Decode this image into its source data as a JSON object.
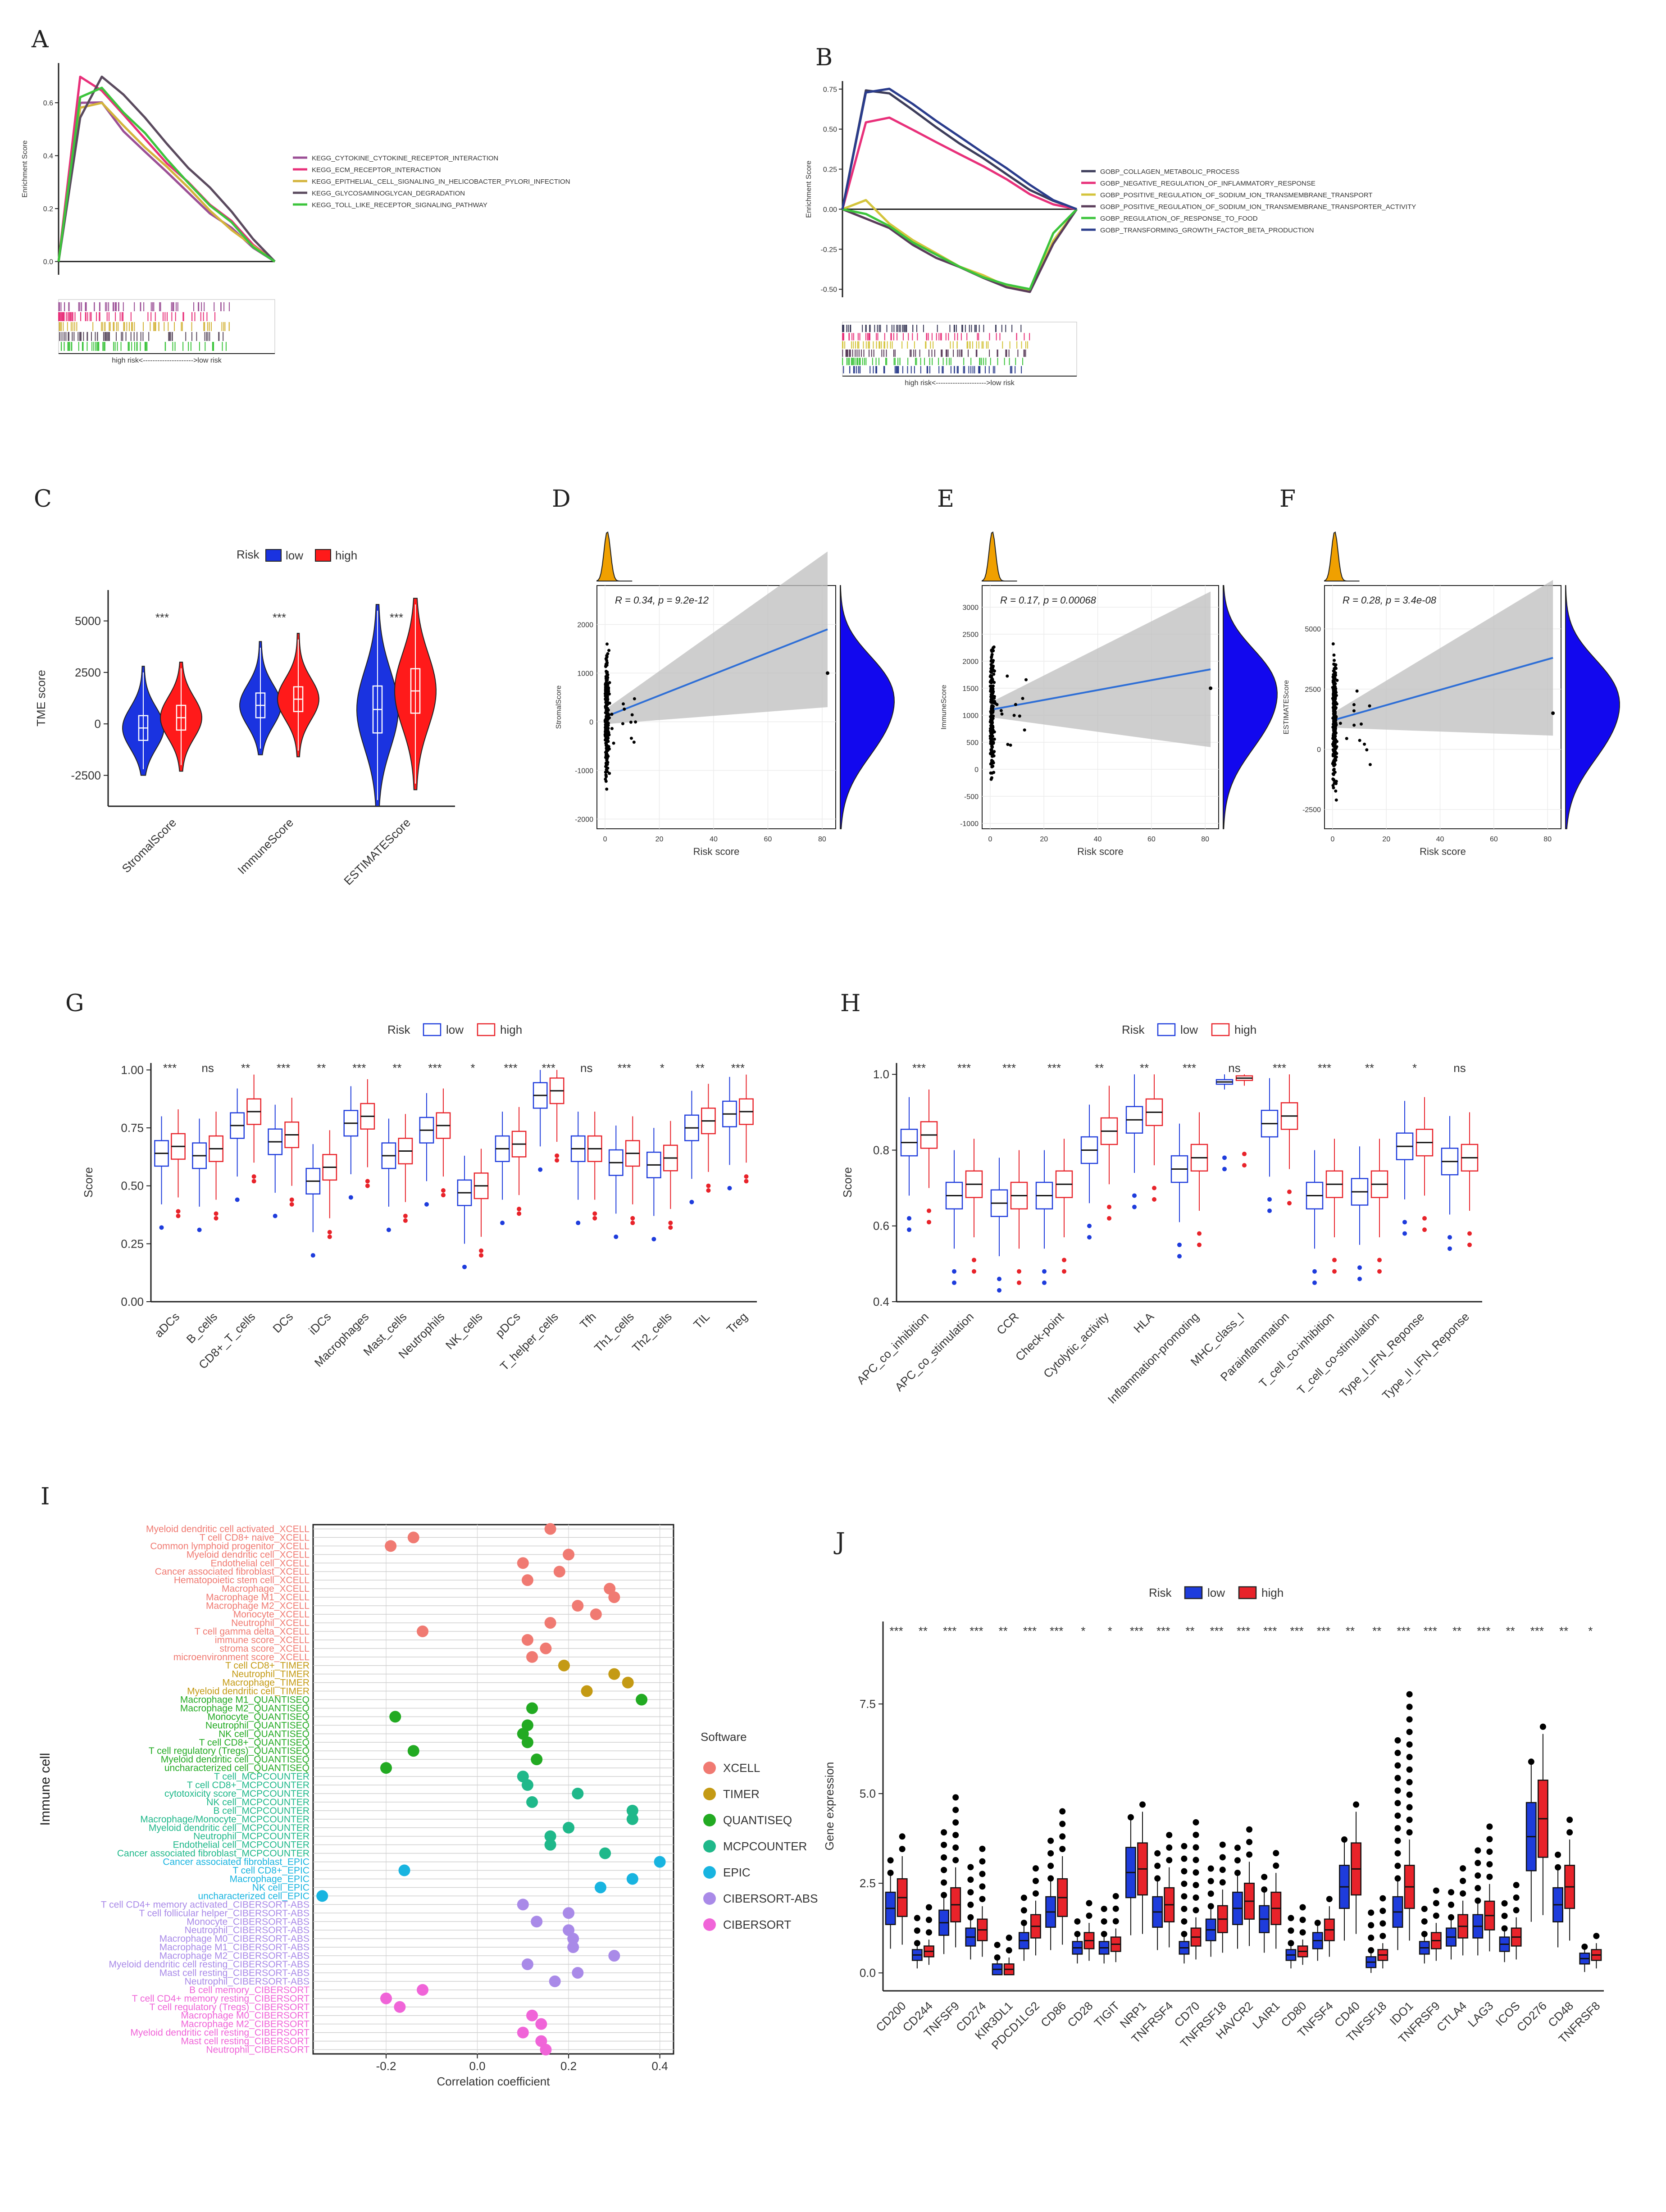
{
  "colors": {
    "low": "#1e3cdc",
    "high": "#e8232a",
    "blueFill": "#1a33e0",
    "redFill": "#ff1a1a"
  },
  "panelA": {
    "letter": "A",
    "ylabel": "Enrichment Score",
    "yticks": [
      "0.6",
      "0.4",
      "0.2",
      "0.0"
    ],
    "footer": "high risk<--------------------->low risk",
    "legend": [
      {
        "label": "KEGG_CYTOKINE_CYTOKINE_RECEPTOR_INTERACTION",
        "color": "#9b4f96"
      },
      {
        "label": "KEGG_ECM_RECEPTOR_INTERACTION",
        "color": "#e8307a"
      },
      {
        "label": "KEGG_EPITHELIAL_CELL_SIGNALING_IN_HELICOBACTER_PYLORI_INFECTION",
        "color": "#d4b43c"
      },
      {
        "label": "KEGG_GLYCOSAMINOGLYCAN_DEGRADATION",
        "color": "#5a4a5e"
      },
      {
        "label": "KEGG_TOLL_LIKE_RECEPTOR_SIGNALING_PATHWAY",
        "color": "#3cc43c"
      }
    ]
  },
  "panelB": {
    "letter": "B",
    "ylabel": "Enrichment Score",
    "yticks": [
      "0.75",
      "0.50",
      "0.25",
      "0.00",
      "-0.25",
      "-0.50"
    ],
    "footer": "high risk<--------------------->low risk",
    "legend": [
      {
        "label": "GOBP_COLLAGEN_METABOLIC_PROCESS",
        "color": "#3c3c5a"
      },
      {
        "label": "GOBP_NEGATIVE_REGULATION_OF_INFLAMMATORY_RESPONSE",
        "color": "#e8307a"
      },
      {
        "label": "GOBP_POSITIVE_REGULATION_OF_SODIUM_ION_TRANSMEMBRANE_TRANSPORT",
        "color": "#d4c43c"
      },
      {
        "label": "GOBP_POSITIVE_REGULATION_OF_SODIUM_ION_TRANSMEMBRANE_TRANSPORTER_ACTIVITY",
        "color": "#5a3c5a"
      },
      {
        "label": "GOBP_REGULATION_OF_RESPONSE_TO_FOOD",
        "color": "#3cc43c"
      },
      {
        "label": "GOBP_TRANSFORMING_GROWTH_FACTOR_BETA_PRODUCTION",
        "color": "#2a3c8c"
      }
    ]
  },
  "panelC": {
    "letter": "C",
    "legend_title": "Risk",
    "legend_low": "low",
    "legend_high": "high",
    "ylabel": "TME score",
    "yticks": [
      "5000",
      "2500",
      "0",
      "-2500"
    ],
    "categories": [
      "StromalScore",
      "ImmuneScore",
      "ESTIMATEScore"
    ],
    "sig": [
      "***",
      "***",
      "***"
    ]
  },
  "scatter": [
    {
      "letter": "D",
      "ylabel": "StromalScore",
      "xlabel": "Risk score",
      "stat": "R = 0.34, p = 9.2e-12",
      "yticks": [
        "2000",
        "1000",
        "0",
        "-1000",
        "-2000"
      ],
      "xticks": [
        "0",
        "20",
        "40",
        "60",
        "80"
      ]
    },
    {
      "letter": "E",
      "ylabel": "ImmuneScore",
      "xlabel": "Risk score",
      "stat": "R = 0.17, p = 0.00068",
      "yticks": [
        "3000",
        "2500",
        "2000",
        "1500",
        "1000",
        "500",
        "0",
        "-500",
        "-1000"
      ],
      "xticks": [
        "0",
        "20",
        "40",
        "60",
        "80"
      ]
    },
    {
      "letter": "F",
      "ylabel": "ESTIMATEScore",
      "xlabel": "Risk score",
      "stat": "R = 0.28, p = 3.4e-08",
      "yticks": [
        "5000",
        "2500",
        "0",
        "-2500"
      ],
      "xticks": [
        "0",
        "20",
        "40",
        "60",
        "80"
      ]
    }
  ],
  "panelG": {
    "letter": "G",
    "legend_title": "Risk",
    "legend_low": "low",
    "legend_high": "high",
    "ylabel": "Score",
    "yticks": [
      "1.00",
      "0.75",
      "0.50",
      "0.25",
      "0.00"
    ],
    "categories": [
      "aDCs",
      "B_cells",
      "CD8+_T_cells",
      "DCs",
      "iDCs",
      "Macrophages",
      "Mast_cells",
      "Neutrophils",
      "NK_cells",
      "pDCs",
      "T_helper_cells",
      "Tfh",
      "Th1_cells",
      "Th2_cells",
      "TIL",
      "Treg"
    ],
    "sig": [
      "***",
      "ns",
      "**",
      "***",
      "**",
      "***",
      "**",
      "***",
      "*",
      "***",
      "***",
      "ns",
      "***",
      "*",
      "**",
      "***"
    ]
  },
  "panelH": {
    "letter": "H",
    "legend_title": "Risk",
    "legend_low": "low",
    "legend_high": "high",
    "ylabel": "Score",
    "yticks": [
      "1.0",
      "0.8",
      "0.6",
      "0.4"
    ],
    "categories": [
      "APC_co_inhibition",
      "APC_co_stimulation",
      "CCR",
      "Check-point",
      "Cytolytic_activity",
      "HLA",
      "Inflammation-promoting",
      "MHC_class_I",
      "Parainflammation",
      "T_cell_co-inhibition",
      "T_cell_co-stimulation",
      "Type_I_IFN_Reponse",
      "Type_II_IFN_Reponse"
    ],
    "sig": [
      "***",
      "***",
      "***",
      "***",
      "**",
      "**",
      "***",
      "ns",
      "***",
      "***",
      "**",
      "*",
      "ns"
    ]
  },
  "panelI": {
    "letter": "I",
    "ylabel": "Immune cell",
    "xlabel": "Correlation coefficient",
    "xticks": [
      "-0.2",
      "0.0",
      "0.2",
      "0.4"
    ],
    "legend_title": "Software",
    "software": [
      {
        "name": "XCELL",
        "color": "#f07a72"
      },
      {
        "name": "TIMER",
        "color": "#c49a14"
      },
      {
        "name": "QUANTISEQ",
        "color": "#22aa22"
      },
      {
        "name": "MCPCOUNTER",
        "color": "#1fb88a"
      },
      {
        "name": "EPIC",
        "color": "#18b4e0"
      },
      {
        "name": "CIBERSORT-ABS",
        "color": "#a98ae8"
      },
      {
        "name": "CIBERSORT",
        "color": "#f064d8"
      }
    ],
    "rows": [
      {
        "label": "Myeloid dendritic cell activated_XCELL",
        "sw": 0,
        "r": 0.16
      },
      {
        "label": "T cell CD8+ naive_XCELL",
        "sw": 0,
        "r": -0.14
      },
      {
        "label": "Common lymphoid progenitor_XCELL",
        "sw": 0,
        "r": -0.19
      },
      {
        "label": "Myeloid dendritic cell_XCELL",
        "sw": 0,
        "r": 0.2
      },
      {
        "label": "Endothelial cell_XCELL",
        "sw": 0,
        "r": 0.1
      },
      {
        "label": "Cancer associated fibroblast_XCELL",
        "sw": 0,
        "r": 0.18
      },
      {
        "label": "Hematopoietic stem cell_XCELL",
        "sw": 0,
        "r": 0.11
      },
      {
        "label": "Macrophage_XCELL",
        "sw": 0,
        "r": 0.29
      },
      {
        "label": "Macrophage M1_XCELL",
        "sw": 0,
        "r": 0.3
      },
      {
        "label": "Macrophage M2_XCELL",
        "sw": 0,
        "r": 0.22
      },
      {
        "label": "Monocyte_XCELL",
        "sw": 0,
        "r": 0.26
      },
      {
        "label": "Neutrophil_XCELL",
        "sw": 0,
        "r": 0.16
      },
      {
        "label": "T cell gamma delta_XCELL",
        "sw": 0,
        "r": -0.12
      },
      {
        "label": "immune score_XCELL",
        "sw": 0,
        "r": 0.11
      },
      {
        "label": "stroma score_XCELL",
        "sw": 0,
        "r": 0.15
      },
      {
        "label": "microenvironment score_XCELL",
        "sw": 0,
        "r": 0.12
      },
      {
        "label": "T cell CD8+_TIMER",
        "sw": 1,
        "r": 0.19
      },
      {
        "label": "Neutrophil_TIMER",
        "sw": 1,
        "r": 0.3
      },
      {
        "label": "Macrophage_TIMER",
        "sw": 1,
        "r": 0.33
      },
      {
        "label": "Myeloid dendritic cell_TIMER",
        "sw": 1,
        "r": 0.24
      },
      {
        "label": "Macrophage M1_QUANTISEQ",
        "sw": 2,
        "r": 0.36
      },
      {
        "label": "Macrophage M2_QUANTISEQ",
        "sw": 2,
        "r": 0.12
      },
      {
        "label": "Monocyte_QUANTISEQ",
        "sw": 2,
        "r": -0.18
      },
      {
        "label": "Neutrophil_QUANTISEQ",
        "sw": 2,
        "r": 0.11
      },
      {
        "label": "NK cell_QUANTISEQ",
        "sw": 2,
        "r": 0.1
      },
      {
        "label": "T cell CD8+_QUANTISEQ",
        "sw": 2,
        "r": 0.11
      },
      {
        "label": "T cell regulatory (Tregs)_QUANTISEQ",
        "sw": 2,
        "r": -0.14
      },
      {
        "label": "Myeloid dendritic cell_QUANTISEQ",
        "sw": 2,
        "r": 0.13
      },
      {
        "label": "uncharacterized cell_QUANTISEQ",
        "sw": 2,
        "r": -0.2
      },
      {
        "label": "T cell_MCPCOUNTER",
        "sw": 3,
        "r": 0.1
      },
      {
        "label": "T cell CD8+_MCPCOUNTER",
        "sw": 3,
        "r": 0.11
      },
      {
        "label": "cytotoxicity score_MCPCOUNTER",
        "sw": 3,
        "r": 0.22
      },
      {
        "label": "NK cell_MCPCOUNTER",
        "sw": 3,
        "r": 0.12
      },
      {
        "label": "B cell_MCPCOUNTER",
        "sw": 3,
        "r": 0.34
      },
      {
        "label": "Macrophage/Monocyte_MCPCOUNTER",
        "sw": 3,
        "r": 0.34
      },
      {
        "label": "Myeloid dendritic cell_MCPCOUNTER",
        "sw": 3,
        "r": 0.2
      },
      {
        "label": "Neutrophil_MCPCOUNTER",
        "sw": 3,
        "r": 0.16
      },
      {
        "label": "Endothelial cell_MCPCOUNTER",
        "sw": 3,
        "r": 0.16
      },
      {
        "label": "Cancer associated fibroblast_MCPCOUNTER",
        "sw": 3,
        "r": 0.28
      },
      {
        "label": "Cancer associated fibroblast_EPIC",
        "sw": 4,
        "r": 0.4
      },
      {
        "label": "T cell CD8+_EPIC",
        "sw": 4,
        "r": -0.16
      },
      {
        "label": "Macrophage_EPIC",
        "sw": 4,
        "r": 0.34
      },
      {
        "label": "NK cell_EPIC",
        "sw": 4,
        "r": 0.27
      },
      {
        "label": "uncharacterized cell_EPIC",
        "sw": 4,
        "r": -0.34
      },
      {
        "label": "T cell CD4+ memory activated_CIBERSORT-ABS",
        "sw": 5,
        "r": 0.1
      },
      {
        "label": "T cell follicular helper_CIBERSORT-ABS",
        "sw": 5,
        "r": 0.2
      },
      {
        "label": "Monocyte_CIBERSORT-ABS",
        "sw": 5,
        "r": 0.13
      },
      {
        "label": "Neutrophil_CIBERSORT-ABS",
        "sw": 5,
        "r": 0.2
      },
      {
        "label": "Macrophage M0_CIBERSORT-ABS",
        "sw": 5,
        "r": 0.21
      },
      {
        "label": "Macrophage M1_CIBERSORT-ABS",
        "sw": 5,
        "r": 0.21
      },
      {
        "label": "Macrophage M2_CIBERSORT-ABS",
        "sw": 5,
        "r": 0.3
      },
      {
        "label": "Myeloid dendritic cell resting_CIBERSORT-ABS",
        "sw": 5,
        "r": 0.11
      },
      {
        "label": "Mast cell resting_CIBERSORT-ABS",
        "sw": 5,
        "r": 0.22
      },
      {
        "label": "Neutrophil_CIBERSORT-ABS",
        "sw": 5,
        "r": 0.17
      },
      {
        "label": "B cell memory_CIBERSORT",
        "sw": 6,
        "r": -0.12
      },
      {
        "label": "T cell CD4+ memory resting_CIBERSORT",
        "sw": 6,
        "r": -0.2
      },
      {
        "label": "T cell regulatory (Tregs)_CIBERSORT",
        "sw": 6,
        "r": -0.17
      },
      {
        "label": "Macrophage M0_CIBERSORT",
        "sw": 6,
        "r": 0.12
      },
      {
        "label": "Macrophage M2_CIBERSORT",
        "sw": 6,
        "r": 0.14
      },
      {
        "label": "Myeloid dendritic cell resting_CIBERSORT",
        "sw": 6,
        "r": 0.1
      },
      {
        "label": "Mast cell resting_CIBERSORT",
        "sw": 6,
        "r": 0.14
      },
      {
        "label": "Neutrophil_CIBERSORT",
        "sw": 6,
        "r": 0.15
      }
    ]
  },
  "panelJ": {
    "letter": "J",
    "legend_title": "Risk",
    "legend_low": "low",
    "legend_high": "high",
    "ylabel": "Gene expression",
    "yticks": [
      "7.5",
      "5.0",
      "2.5",
      "0.0"
    ],
    "categories": [
      "CD200",
      "CD244",
      "TNFSF9",
      "CD274",
      "KIR3DL1",
      "PDCD1LG2",
      "CD86",
      "CD28",
      "TIGIT",
      "NRP1",
      "TNFRSF4",
      "CD70",
      "TNFRSF18",
      "HAVCR2",
      "LAIR1",
      "CD80",
      "TNFSF4",
      "CD40",
      "TNFSF18",
      "IDO1",
      "TNFRSF9",
      "CTLA4",
      "LAG3",
      "ICOS",
      "CD276",
      "CD48",
      "TNFRSF8"
    ],
    "sig": [
      "***",
      "**",
      "***",
      "***",
      "**",
      "***",
      "***",
      "*",
      "*",
      "***",
      "***",
      "**",
      "***",
      "***",
      "***",
      "***",
      "***",
      "**",
      "**",
      "***",
      "***",
      "**",
      "***",
      "**",
      "***",
      "**",
      "*"
    ]
  },
  "chart_data": [
    {
      "type": "line",
      "title": "A",
      "ylabel": "Enrichment Score",
      "ylim": [
        -0.05,
        0.75
      ],
      "x": [
        0,
        0.1,
        0.2,
        0.3,
        0.4,
        0.5,
        0.6,
        0.7,
        0.8,
        0.9,
        1.0
      ],
      "series": [
        {
          "name": "KEGG_CYTOKINE_CYTOKINE_RECEPTOR_INTERACTION",
          "values": [
            0,
            0.6,
            0.6,
            0.5,
            0.42,
            0.34,
            0.26,
            0.19,
            0.12,
            0.05,
            0.0
          ]
        },
        {
          "name": "KEGG_ECM_RECEPTOR_INTERACTION",
          "values": [
            0,
            0.7,
            0.65,
            0.55,
            0.46,
            0.38,
            0.3,
            0.22,
            0.15,
            0.07,
            0.0
          ]
        },
        {
          "name": "KEGG_EPITHELIAL_CELL_SIGNALING_IN_HELICOBACTER_PYLORI_INFECTION",
          "values": [
            0,
            0.58,
            0.6,
            0.52,
            0.44,
            0.35,
            0.27,
            0.2,
            0.12,
            0.05,
            0.0
          ]
        },
        {
          "name": "KEGG_GLYCOSAMINOGLYCAN_DEGRADATION",
          "values": [
            0,
            0.55,
            0.7,
            0.63,
            0.54,
            0.45,
            0.36,
            0.27,
            0.19,
            0.09,
            0.0
          ]
        },
        {
          "name": "KEGG_TOLL_LIKE_RECEPTOR_SIGNALING_PATHWAY",
          "values": [
            0,
            0.62,
            0.66,
            0.57,
            0.48,
            0.39,
            0.3,
            0.22,
            0.14,
            0.06,
            0.0
          ]
        }
      ]
    },
    {
      "type": "line",
      "title": "B",
      "ylabel": "Enrichment Score",
      "ylim": [
        -0.55,
        0.8
      ],
      "x": [
        0,
        0.1,
        0.2,
        0.3,
        0.4,
        0.5,
        0.6,
        0.7,
        0.8,
        0.9,
        1.0
      ],
      "series": [
        {
          "name": "GOBP_COLLAGEN_METABOLIC_PROCESS",
          "values": [
            0,
            0.74,
            0.72,
            0.62,
            0.52,
            0.42,
            0.32,
            0.22,
            0.13,
            0.05,
            0.0
          ]
        },
        {
          "name": "GOBP_NEGATIVE_REGULATION_OF_INFLAMMATORY_RESPONSE",
          "values": [
            0,
            0.55,
            0.58,
            0.5,
            0.42,
            0.34,
            0.26,
            0.18,
            0.1,
            0.04,
            0.0
          ]
        },
        {
          "name": "GOBP_POSITIVE_REGULATION_OF_SODIUM_ION_TRANSMEMBRANE_TRANSPORT",
          "values": [
            0,
            0.05,
            -0.1,
            -0.2,
            -0.28,
            -0.36,
            -0.42,
            -0.47,
            -0.5,
            -0.2,
            0.0
          ]
        },
        {
          "name": "GOBP_POSITIVE_REGULATION_OF_SODIUM_ION_TRANSMEMBRANE_TRANSPORTER_ACTIVITY",
          "values": [
            0,
            -0.05,
            -0.12,
            -0.22,
            -0.3,
            -0.37,
            -0.43,
            -0.48,
            -0.52,
            -0.22,
            0.0
          ]
        },
        {
          "name": "GOBP_REGULATION_OF_RESPONSE_TO_FOOD",
          "values": [
            0,
            -0.02,
            -0.1,
            -0.2,
            -0.28,
            -0.35,
            -0.42,
            -0.47,
            -0.5,
            -0.15,
            0.0
          ]
        },
        {
          "name": "GOBP_TRANSFORMING_GROWTH_FACTOR_BETA_PRODUCTION",
          "values": [
            0,
            0.72,
            0.76,
            0.66,
            0.56,
            0.46,
            0.36,
            0.26,
            0.16,
            0.06,
            0.0
          ]
        }
      ]
    },
    {
      "type": "scatter",
      "title": "D",
      "xlabel": "Risk score",
      "ylabel": "StromalScore",
      "xlim": [
        -3,
        85
      ],
      "ylim": [
        -2200,
        2800
      ],
      "fit": [
        [
          0,
          100
        ],
        [
          82,
          1900
        ]
      ],
      "outlier": [
        82,
        1000
      ]
    },
    {
      "type": "scatter",
      "title": "E",
      "xlabel": "Risk score",
      "ylabel": "ImmuneScore",
      "xlim": [
        -3,
        85
      ],
      "ylim": [
        -1100,
        3400
      ],
      "fit": [
        [
          0,
          1100
        ],
        [
          82,
          1850
        ]
      ],
      "outlier": [
        82,
        1500
      ]
    },
    {
      "type": "scatter",
      "title": "F",
      "xlabel": "Risk score",
      "ylabel": "ESTIMATEScore",
      "xlim": [
        -3,
        85
      ],
      "ylim": [
        -3300,
        6800
      ],
      "fit": [
        [
          0,
          1200
        ],
        [
          82,
          3800
        ]
      ],
      "outlier": [
        82,
        1500
      ]
    }
  ]
}
